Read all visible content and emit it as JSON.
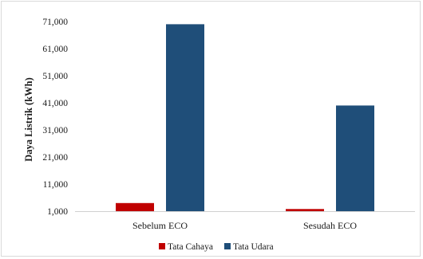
{
  "chart_data": {
    "type": "bar",
    "title": "",
    "xlabel": "",
    "ylabel": "Daya Listrik (kWh)",
    "ylim": [
      1000,
      71000
    ],
    "yticks": [
      1000,
      11000,
      21000,
      31000,
      41000,
      51000,
      61000,
      71000
    ],
    "ytick_labels": [
      "1,000",
      "11,000",
      "21,000",
      "31,000",
      "41,000",
      "51,000",
      "61,000",
      "71,000"
    ],
    "grid": false,
    "legend_position": "bottom",
    "categories": [
      "Sebelum ECO",
      "Sesudah ECO"
    ],
    "series": [
      {
        "name": "Tata Cahaya",
        "color": "#c00000",
        "values": [
          4000,
          1800
        ]
      },
      {
        "name": "Tata Udara",
        "color": "#1f4e79",
        "values": [
          70000,
          40000
        ]
      }
    ]
  }
}
